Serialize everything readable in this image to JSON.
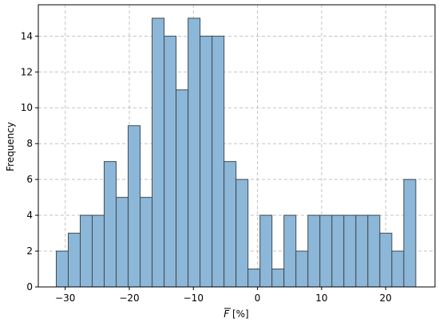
{
  "chart_data": {
    "type": "bar",
    "subtype": "histogram",
    "title": "",
    "xlabel": "F̅ [%]",
    "xlabel_parts": {
      "symbol": "F",
      "unit": " [%]"
    },
    "ylabel": "Frequency",
    "xlim": [
      -34.2,
      27.7
    ],
    "ylim": [
      0,
      15.75
    ],
    "x_ticks": [
      -30,
      -20,
      -10,
      0,
      10,
      20
    ],
    "x_tick_labels": [
      "−30",
      "−20",
      "−10",
      "0",
      "10",
      "20"
    ],
    "y_ticks": [
      0,
      2,
      4,
      6,
      8,
      10,
      12,
      14
    ],
    "y_tick_labels": [
      "0",
      "2",
      "4",
      "6",
      "8",
      "10",
      "12",
      "14"
    ],
    "grid": true,
    "bar_color": "#8cb7d8",
    "edge_color": "#3f4a52",
    "bin_start": -31.4,
    "bin_width": 1.87,
    "values": [
      2,
      3,
      4,
      4,
      7,
      5,
      9,
      5,
      15,
      14,
      11,
      15,
      14,
      14,
      7,
      6,
      1,
      4,
      1,
      4,
      2,
      4,
      4,
      4,
      4,
      4,
      4,
      3,
      2,
      6
    ]
  }
}
